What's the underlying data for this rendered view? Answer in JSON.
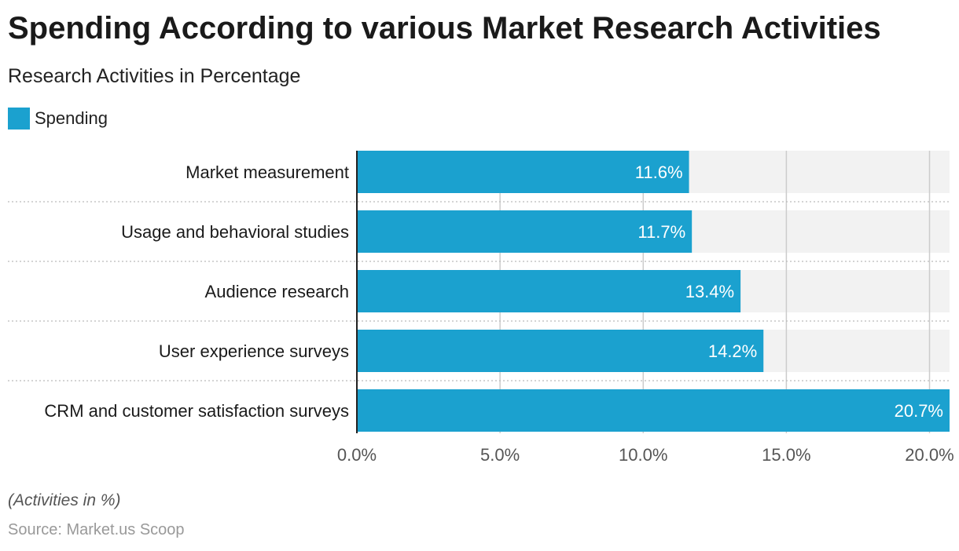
{
  "header": {
    "title": "Spending According to various Market Research Activities",
    "subtitle": "Research Activities in Percentage"
  },
  "legend": {
    "label": "Spending",
    "color": "#1ba1cf"
  },
  "footer": {
    "note": "(Activities in %)",
    "source": "Source: Market.us Scoop"
  },
  "chart_data": {
    "type": "bar",
    "orientation": "horizontal",
    "categories": [
      "Market measurement",
      "Usage and behavioral studies",
      "Audience research",
      "User experience surveys",
      "CRM and customer satisfaction surveys"
    ],
    "series": [
      {
        "name": "Spending",
        "values": [
          11.6,
          11.7,
          13.4,
          14.2,
          20.7
        ],
        "color": "#1ba1cf"
      }
    ],
    "data_labels": [
      "11.6%",
      "11.7%",
      "13.4%",
      "14.2%",
      "20.7%"
    ],
    "x_ticks": [
      0,
      5,
      10,
      15,
      20
    ],
    "x_tick_labels": [
      "0.0%",
      "5.0%",
      "10.0%",
      "15.0%",
      "20.0%"
    ],
    "xlim": [
      0,
      20.7
    ],
    "grid": true,
    "legend_position": "top-left"
  }
}
